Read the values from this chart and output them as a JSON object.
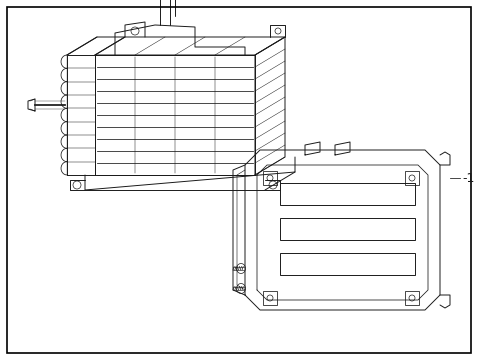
{
  "bg_color": "#ffffff",
  "border_color": "#000000",
  "line_color": "#1a1a1a",
  "label_1": "-1",
  "fig_width": 4.9,
  "fig_height": 3.6,
  "dpi": 100,
  "border_lw": 1.0,
  "lw": 0.7
}
